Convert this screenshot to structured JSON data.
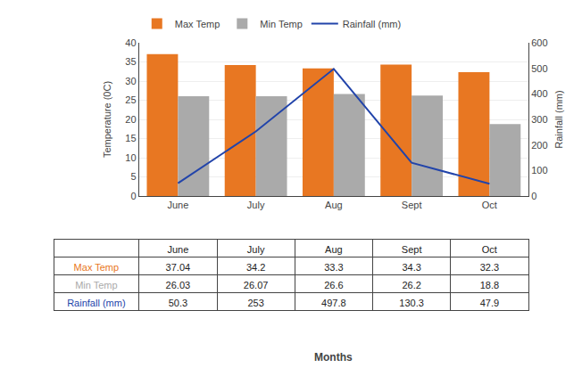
{
  "chart_data": {
    "type": "bar",
    "categories": [
      "June",
      "July",
      "Aug",
      "Sept",
      "Oct"
    ],
    "series": [
      {
        "name": "Max Temp",
        "type": "bar",
        "color": "#E87722",
        "values": [
          37.04,
          34.2,
          33.3,
          34.3,
          32.3
        ]
      },
      {
        "name": "Min Temp",
        "type": "bar",
        "color": "#AAAAAA",
        "values": [
          26.03,
          26.07,
          26.6,
          26.2,
          18.8
        ]
      },
      {
        "name": "Rainfall (mm)",
        "type": "line",
        "axis": "y2",
        "color": "#2244AA",
        "values": [
          50.3,
          253,
          497.8,
          130.3,
          47.9
        ]
      }
    ],
    "ylabel": "Temperature (0C)",
    "y2label": "Rainfall (mm)",
    "xlabel": "Months",
    "ylim": [
      0,
      40
    ],
    "yticks": [
      0,
      5,
      10,
      15,
      20,
      25,
      30,
      35,
      40
    ],
    "y2lim": [
      0,
      600
    ],
    "y2ticks": [
      0,
      100,
      200,
      300,
      400,
      500,
      600
    ],
    "grid": true,
    "legend": "top left"
  }
}
